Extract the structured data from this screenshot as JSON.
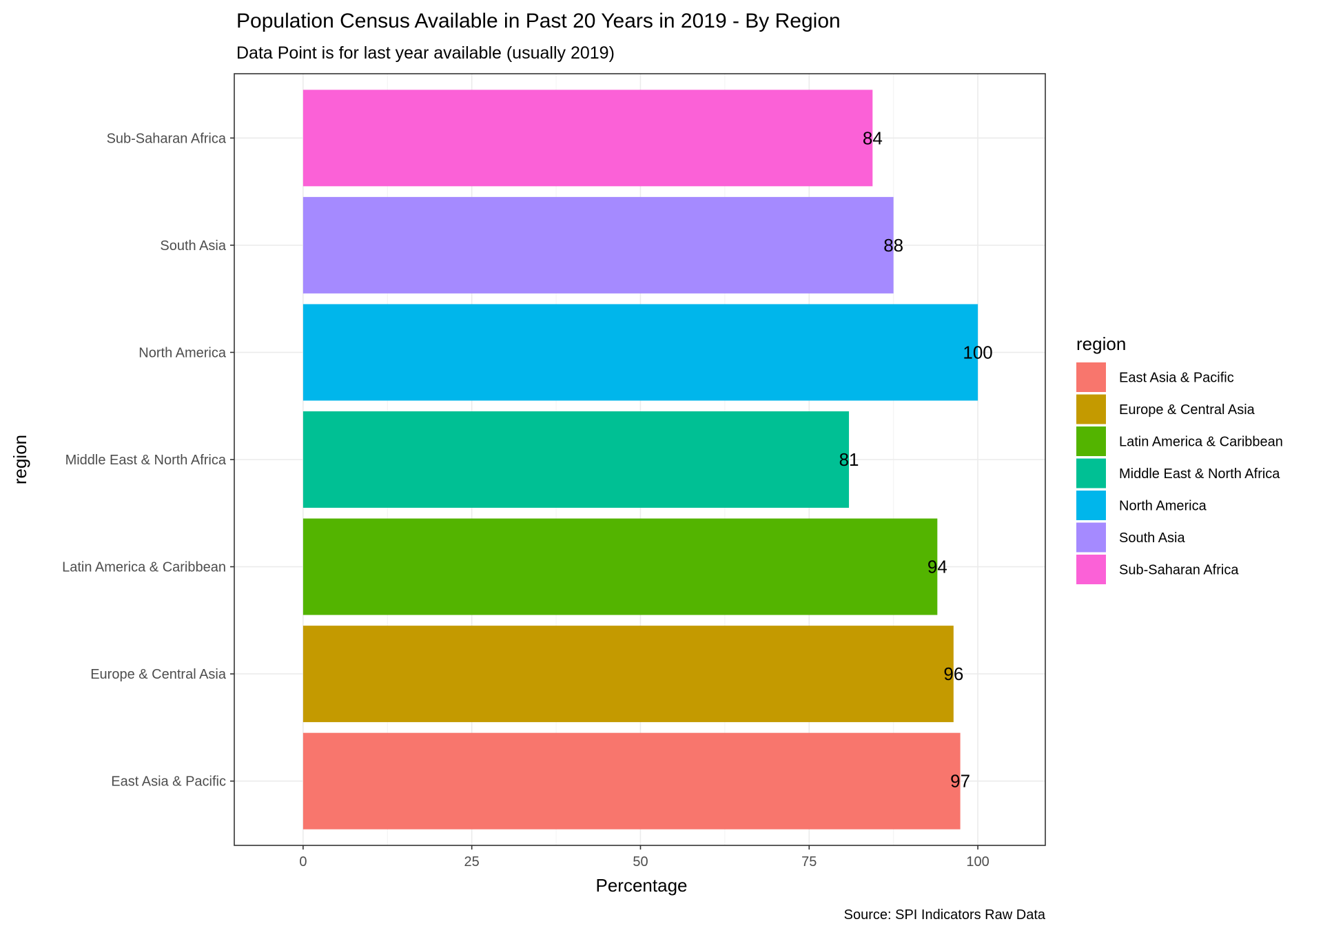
{
  "chart_data": {
    "type": "bar",
    "orientation": "horizontal",
    "title": "Population Census Available in Past 20 Years in 2019 - By Region",
    "subtitle": "Data Point is for last year available (usually 2019)",
    "xlabel": "Percentage",
    "ylabel": "region",
    "caption": "Source: SPI Indicators Raw Data",
    "xlim": [
      -10.2,
      110
    ],
    "x_ticks": [
      "0",
      "25",
      "50",
      "75",
      "100"
    ],
    "grid": true,
    "legend": {
      "title": "region",
      "placement": "right"
    },
    "categories": [
      "East Asia & Pacific",
      "Europe & Central Asia",
      "Latin America & Caribbean",
      "Middle East & North Africa",
      "North America",
      "South Asia",
      "Sub-Saharan Africa"
    ],
    "values": [
      97.4,
      96.4,
      94,
      80.9,
      100,
      87.5,
      84.4
    ],
    "value_labels": [
      "97",
      "96",
      "94",
      "81",
      "100",
      "88",
      "84"
    ],
    "colors": [
      "#F8766D",
      "#C49A00",
      "#53B400",
      "#00C094",
      "#00B6EB",
      "#A58AFF",
      "#FB61D7"
    ]
  }
}
